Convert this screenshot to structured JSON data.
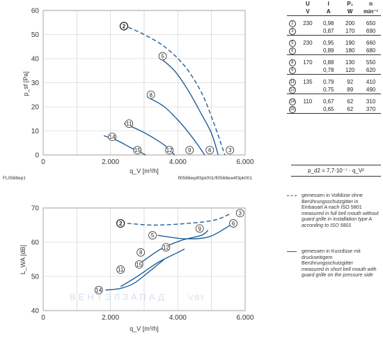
{
  "chart_data": [
    {
      "type": "line",
      "name_label": "",
      "ylabel": "p_sf [Pa]",
      "xlabel": "q_V [m³/h]",
      "xlim": [
        0,
        6000
      ],
      "ylim": [
        0,
        60
      ],
      "xticks": [
        "0",
        "2.000",
        "4.000",
        "6.000"
      ],
      "yticks": [
        "0",
        "10",
        "20",
        "30",
        "40",
        "50",
        "60"
      ],
      "bottom_left_label": "FL0568ep1",
      "bottom_right_label": "fl0568eq4f3pk001/fl0568ew4f3pk001",
      "series": [
        {
          "marker": "2",
          "style": "dashed",
          "points": [
            [
              2530,
              53
            ],
            [
              3000,
              50
            ],
            [
              3600,
              45
            ],
            [
              4200,
              37
            ],
            [
              4700,
              26
            ],
            [
              5050,
              14
            ],
            [
              5300,
              4
            ],
            [
              5400,
              0
            ]
          ]
        },
        {
          "marker": "5",
          "style": "solid",
          "points": [
            [
              3500,
              40
            ],
            [
              3900,
              35
            ],
            [
              4300,
              27
            ],
            [
              4700,
              17
            ],
            [
              5000,
              9
            ],
            [
              5200,
              0
            ]
          ]
        },
        {
          "marker": "8",
          "style": "solid",
          "points": [
            [
              3100,
              24
            ],
            [
              3600,
              20
            ],
            [
              4100,
              13
            ],
            [
              4500,
              6
            ],
            [
              4800,
              0
            ]
          ]
        },
        {
          "marker": "11",
          "style": "solid",
          "points": [
            [
              2400,
              13
            ],
            [
              2900,
              10
            ],
            [
              3400,
              6
            ],
            [
              3700,
              3
            ],
            [
              3900,
              0
            ]
          ]
        },
        {
          "marker": "14",
          "style": "solid",
          "points": [
            [
              1800,
              8
            ],
            [
              2200,
              6
            ],
            [
              2600,
              3
            ],
            [
              2900,
              1
            ],
            [
              3050,
              0
            ]
          ]
        }
      ],
      "markers": [
        {
          "id": "2",
          "x": 2400,
          "y": 53.5,
          "bold": true
        },
        {
          "id": "5",
          "x": 3550,
          "y": 41
        },
        {
          "id": "8",
          "x": 3200,
          "y": 25
        },
        {
          "id": "11",
          "x": 2550,
          "y": 13
        },
        {
          "id": "14",
          "x": 2050,
          "y": 7.5
        },
        {
          "id": "15",
          "x": 2800,
          "y": 2
        },
        {
          "id": "12",
          "x": 3750,
          "y": 2
        },
        {
          "id": "9",
          "x": 4350,
          "y": 2
        },
        {
          "id": "6",
          "x": 4950,
          "y": 2
        },
        {
          "id": "3",
          "x": 5550,
          "y": 2
        }
      ]
    },
    {
      "type": "line",
      "ylabel": "L_WA [dB]",
      "xlabel": "q_V [m³/h]",
      "xlim": [
        0,
        6000
      ],
      "ylim": [
        40,
        70
      ],
      "xticks": [
        "0",
        "2.000",
        "4.000",
        "6.000"
      ],
      "yticks": [
        "40",
        "50",
        "60",
        "70"
      ],
      "series": [
        {
          "marker": "2-3",
          "style": "dashed",
          "points": [
            [
              2500,
              65.5
            ],
            [
              3300,
              65
            ],
            [
              4300,
              65.5
            ],
            [
              5100,
              66.5
            ],
            [
              5600,
              68.5
            ]
          ]
        },
        {
          "marker": "5-6",
          "style": "solid",
          "points": [
            [
              3400,
              62
            ],
            [
              4200,
              61
            ],
            [
              4900,
              61.5
            ],
            [
              5400,
              64
            ],
            [
              5700,
              66
            ]
          ]
        },
        {
          "marker": "8-9",
          "style": "solid",
          "points": [
            [
              2900,
              54
            ],
            [
              3500,
              58
            ],
            [
              4100,
              60.5
            ],
            [
              4700,
              62
            ],
            [
              4900,
              63.5
            ]
          ]
        },
        {
          "marker": "11-12",
          "style": "solid",
          "points": [
            [
              2300,
              47
            ],
            [
              2800,
              50
            ],
            [
              3400,
              54
            ],
            [
              4000,
              57
            ],
            [
              4200,
              58
            ]
          ]
        },
        {
          "marker": "14-15",
          "style": "solid",
          "points": [
            [
              1850,
              46
            ],
            [
              2300,
              46.5
            ],
            [
              2700,
              48
            ],
            [
              3100,
              51
            ],
            [
              3600,
              55
            ]
          ]
        }
      ],
      "markers": [
        {
          "id": "2",
          "x": 2300,
          "y": 65.5,
          "bold": true
        },
        {
          "id": "3",
          "x": 5850,
          "y": 68.5
        },
        {
          "id": "5",
          "x": 3250,
          "y": 62
        },
        {
          "id": "6",
          "x": 5650,
          "y": 65.5
        },
        {
          "id": "9",
          "x": 4650,
          "y": 64
        },
        {
          "id": "8",
          "x": 2900,
          "y": 57
        },
        {
          "id": "12",
          "x": 3650,
          "y": 58.5
        },
        {
          "id": "11",
          "x": 2300,
          "y": 52
        },
        {
          "id": "15",
          "x": 2850,
          "y": 53.5
        },
        {
          "id": "14",
          "x": 1650,
          "y": 46
        }
      ]
    }
  ],
  "spec_table": {
    "headers": [
      "U",
      "I",
      "P₁",
      "n"
    ],
    "units": [
      "V",
      "A",
      "W",
      "min⁻¹"
    ],
    "groups": [
      {
        "rows": [
          [
            "2",
            "230",
            "0,98",
            "200",
            "650"
          ],
          [
            "3",
            "",
            "0,87",
            "170",
            "690"
          ]
        ]
      },
      {
        "rows": [
          [
            "5",
            "230",
            "0,95",
            "190",
            "660"
          ],
          [
            "6",
            "",
            "0,89",
            "180",
            "680"
          ]
        ]
      },
      {
        "rows": [
          [
            "8",
            "170",
            "0,88",
            "130",
            "550"
          ],
          [
            "9",
            "",
            "0,78",
            "120",
            "620"
          ]
        ]
      },
      {
        "rows": [
          [
            "11",
            "135",
            "0,79",
            "92",
            "410"
          ],
          [
            "12",
            "",
            "0,75",
            "89",
            "490"
          ]
        ]
      },
      {
        "rows": [
          [
            "14",
            "110",
            "0,67",
            "62",
            "310"
          ],
          [
            "15",
            "",
            "0,65",
            "62",
            "370"
          ]
        ]
      }
    ]
  },
  "formula": "p_d2 = 7,7·10⁻⁷ · q_V²",
  "legend": [
    {
      "style": "dashed",
      "de": "gemessen in Volldüse ohne Berührungsschutzgitter in Einbauart A nach ISO 5801",
      "en": "measured in full bell mouth without guard grille in installation type A according to ISO 5801"
    },
    {
      "style": "solid",
      "de": "gemessen in Kurzdüse mit druckseitigem Berührungsschutzgitter",
      "en": "measured in short bell mouth with guard grille on the pressure side"
    }
  ],
  "watermark": {
    "left": "ВЕНТЭЛЗАПАД",
    "right": "V.BY"
  },
  "colors": {
    "curve": "#1f5f9a",
    "grid": "#c8c8c8",
    "axis": "#333333"
  }
}
